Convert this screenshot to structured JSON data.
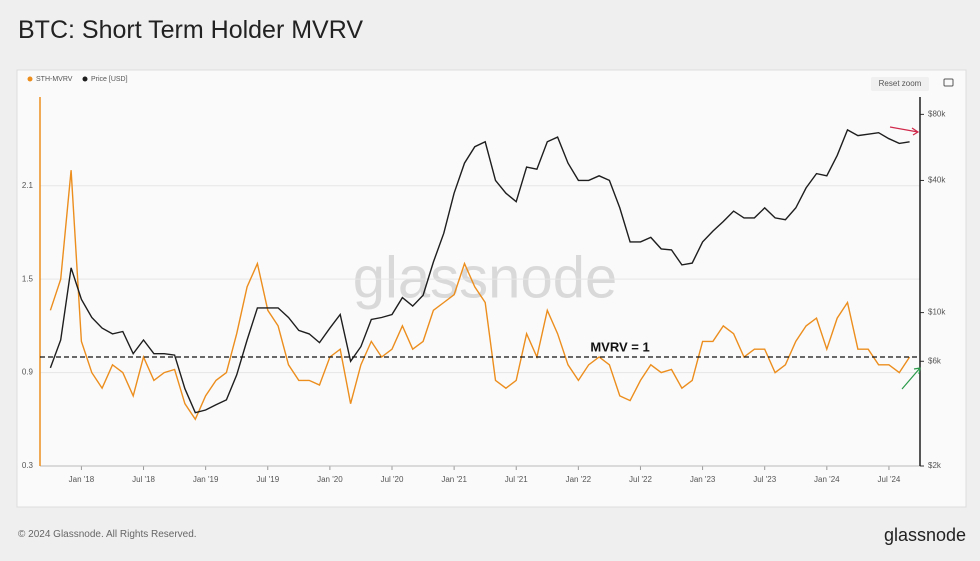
{
  "header": {
    "title": "BTC: Short Term Holder MVRV",
    "button": "Reset zoom"
  },
  "footer": {
    "copyright": "© 2024 Glassnode. All Rights Reserved.",
    "logo": "glassnode"
  },
  "watermark": "glassnode",
  "chart_data": {
    "type": "line",
    "x": [
      "2017-10",
      "2017-11",
      "2017-12",
      "2018-01",
      "2018-02",
      "2018-03",
      "2018-04",
      "2018-05",
      "2018-06",
      "2018-07",
      "2018-08",
      "2018-09",
      "2018-10",
      "2018-11",
      "2018-12",
      "2019-01",
      "2019-02",
      "2019-03",
      "2019-04",
      "2019-05",
      "2019-06",
      "2019-07",
      "2019-08",
      "2019-09",
      "2019-10",
      "2019-11",
      "2019-12",
      "2020-01",
      "2020-02",
      "2020-03",
      "2020-04",
      "2020-05",
      "2020-06",
      "2020-07",
      "2020-08",
      "2020-09",
      "2020-10",
      "2020-11",
      "2020-12",
      "2021-01",
      "2021-02",
      "2021-03",
      "2021-04",
      "2021-05",
      "2021-06",
      "2021-07",
      "2021-08",
      "2021-09",
      "2021-10",
      "2021-11",
      "2021-12",
      "2022-01",
      "2022-02",
      "2022-03",
      "2022-04",
      "2022-05",
      "2022-06",
      "2022-07",
      "2022-08",
      "2022-09",
      "2022-10",
      "2022-11",
      "2022-12",
      "2023-01",
      "2023-02",
      "2023-03",
      "2023-04",
      "2023-05",
      "2023-06",
      "2023-07",
      "2023-08",
      "2023-09",
      "2023-10",
      "2023-11",
      "2023-12",
      "2024-01",
      "2024-02",
      "2024-03",
      "2024-04",
      "2024-05",
      "2024-06",
      "2024-07",
      "2024-08",
      "2024-09"
    ],
    "xlim": [
      "2017-09",
      "2024-10"
    ],
    "xticks": [
      {
        "value": "2018-01",
        "label": "Jan '18"
      },
      {
        "value": "2018-07",
        "label": "Jul '18"
      },
      {
        "value": "2019-01",
        "label": "Jan '19"
      },
      {
        "value": "2019-07",
        "label": "Jul '19"
      },
      {
        "value": "2020-01",
        "label": "Jan '20"
      },
      {
        "value": "2020-07",
        "label": "Jul '20"
      },
      {
        "value": "2021-01",
        "label": "Jan '21"
      },
      {
        "value": "2021-07",
        "label": "Jul '21"
      },
      {
        "value": "2022-01",
        "label": "Jan '22"
      },
      {
        "value": "2022-07",
        "label": "Jul '22"
      },
      {
        "value": "2023-01",
        "label": "Jan '23"
      },
      {
        "value": "2023-07",
        "label": "Jul '23"
      },
      {
        "value": "2024-01",
        "label": "Jan '24"
      },
      {
        "value": "2024-07",
        "label": "Jul '24"
      }
    ],
    "ylim": [
      0.3,
      2.67
    ],
    "yticks": [
      0.3,
      0.9,
      1.5,
      2.1
    ],
    "y2lim": [
      2000,
      96000
    ],
    "y2scale": "log",
    "y2ticks": [
      {
        "value": 2000,
        "label": "$2k"
      },
      {
        "value": 6000,
        "label": "$6k"
      },
      {
        "value": 10000,
        "label": "$10k"
      },
      {
        "value": 40000,
        "label": "$40k"
      },
      {
        "value": 80000,
        "label": "$80k"
      }
    ],
    "grid": true,
    "legend": "top-left",
    "reference_line": {
      "value": 1,
      "label": "MVRV = 1"
    },
    "series": [
      {
        "name": "STH-MVRV",
        "color": "#ec8e1e",
        "axis": "y",
        "values": [
          1.3,
          1.5,
          2.2,
          1.1,
          0.9,
          0.8,
          0.95,
          0.9,
          0.75,
          1.0,
          0.85,
          0.9,
          0.92,
          0.7,
          0.6,
          0.75,
          0.85,
          0.9,
          1.15,
          1.45,
          1.6,
          1.3,
          1.2,
          0.95,
          0.85,
          0.85,
          0.82,
          1.0,
          1.05,
          0.7,
          0.95,
          1.1,
          1.0,
          1.05,
          1.2,
          1.05,
          1.1,
          1.3,
          1.35,
          1.4,
          1.6,
          1.45,
          1.35,
          0.85,
          0.8,
          0.85,
          1.15,
          1.0,
          1.3,
          1.15,
          0.95,
          0.85,
          0.95,
          1.0,
          0.95,
          0.75,
          0.72,
          0.85,
          0.95,
          0.9,
          0.92,
          0.8,
          0.85,
          1.1,
          1.1,
          1.2,
          1.15,
          1.0,
          1.05,
          1.05,
          0.9,
          0.95,
          1.1,
          1.2,
          1.25,
          1.05,
          1.25,
          1.35,
          1.05,
          1.05,
          0.95,
          0.95,
          0.9,
          1.0
        ]
      },
      {
        "name": "Price [USD]",
        "color": "#1e1e1e",
        "axis": "y2",
        "values": [
          5600,
          7500,
          16000,
          11500,
          9500,
          8500,
          8000,
          8200,
          6500,
          7500,
          6500,
          6500,
          6400,
          4500,
          3500,
          3600,
          3800,
          4000,
          5200,
          7500,
          10500,
          10500,
          10500,
          9500,
          8300,
          8000,
          7300,
          8500,
          9800,
          6000,
          7000,
          9300,
          9500,
          9800,
          11700,
          10700,
          12000,
          17000,
          23000,
          35000,
          48000,
          57000,
          60000,
          40000,
          35000,
          32000,
          46000,
          45000,
          60000,
          63000,
          48000,
          40000,
          40000,
          42000,
          40000,
          30000,
          21000,
          21000,
          22000,
          19500,
          19300,
          16500,
          16800,
          21000,
          23500,
          26000,
          29000,
          27000,
          27000,
          30000,
          27000,
          26500,
          30000,
          37000,
          43000,
          42000,
          52000,
          68000,
          64000,
          65000,
          66000,
          62000,
          59000,
          60000
        ]
      }
    ]
  }
}
